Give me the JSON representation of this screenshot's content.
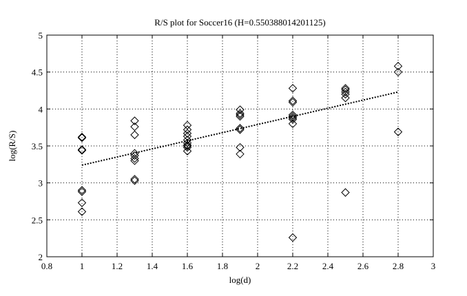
{
  "chart_data": {
    "type": "scatter",
    "title": "R/S plot for Soccer16 (H=0.550388014201125)",
    "xlabel": "log(d)",
    "ylabel": "log(R/S)",
    "xlim": [
      0.8,
      3
    ],
    "ylim": [
      2,
      5
    ],
    "xticks": [
      "0.8",
      "1",
      "1.2",
      "1.4",
      "1.6",
      "1.8",
      "2",
      "2.2",
      "2.4",
      "2.6",
      "2.8",
      "3"
    ],
    "yticks": [
      "2",
      "2.5",
      "3",
      "3.5",
      "4",
      "4.5",
      "5"
    ],
    "grid": true,
    "grid_style": "dotted",
    "marker": "diamond",
    "marker_color": "#000000",
    "series": [
      {
        "points": [
          [
            1.0,
            3.62
          ],
          [
            1.0,
            3.61
          ],
          [
            1.0,
            3.45
          ],
          [
            1.0,
            3.44
          ],
          [
            1.0,
            2.9
          ],
          [
            1.0,
            2.88
          ],
          [
            1.0,
            2.73
          ],
          [
            1.0,
            2.61
          ],
          [
            1.3,
            3.84
          ],
          [
            1.3,
            3.76
          ],
          [
            1.3,
            3.65
          ],
          [
            1.3,
            3.4
          ],
          [
            1.3,
            3.37
          ],
          [
            1.3,
            3.33
          ],
          [
            1.3,
            3.3
          ],
          [
            1.3,
            3.05
          ],
          [
            1.3,
            3.03
          ],
          [
            1.6,
            3.78
          ],
          [
            1.6,
            3.72
          ],
          [
            1.6,
            3.67
          ],
          [
            1.6,
            3.63
          ],
          [
            1.6,
            3.58
          ],
          [
            1.6,
            3.54
          ],
          [
            1.6,
            3.51
          ],
          [
            1.6,
            3.5
          ],
          [
            1.6,
            3.48
          ],
          [
            1.6,
            3.43
          ],
          [
            1.9,
            3.99
          ],
          [
            1.9,
            3.94
          ],
          [
            1.9,
            3.92
          ],
          [
            1.9,
            3.9
          ],
          [
            1.9,
            3.74
          ],
          [
            1.9,
            3.72
          ],
          [
            1.9,
            3.48
          ],
          [
            1.9,
            3.39
          ],
          [
            2.2,
            4.28
          ],
          [
            2.2,
            4.11
          ],
          [
            2.2,
            4.09
          ],
          [
            2.2,
            3.92
          ],
          [
            2.2,
            3.9
          ],
          [
            2.2,
            3.88
          ],
          [
            2.2,
            3.86
          ],
          [
            2.2,
            3.8
          ],
          [
            2.2,
            2.26
          ],
          [
            2.5,
            4.28
          ],
          [
            2.5,
            4.26
          ],
          [
            2.5,
            4.23
          ],
          [
            2.5,
            4.2
          ],
          [
            2.5,
            4.15
          ],
          [
            2.5,
            2.87
          ],
          [
            2.8,
            4.58
          ],
          [
            2.8,
            4.5
          ],
          [
            2.8,
            3.69
          ]
        ]
      }
    ],
    "fit_line": {
      "style": "dotted",
      "x": [
        1.0,
        2.8
      ],
      "y": [
        3.24,
        4.23
      ]
    }
  }
}
